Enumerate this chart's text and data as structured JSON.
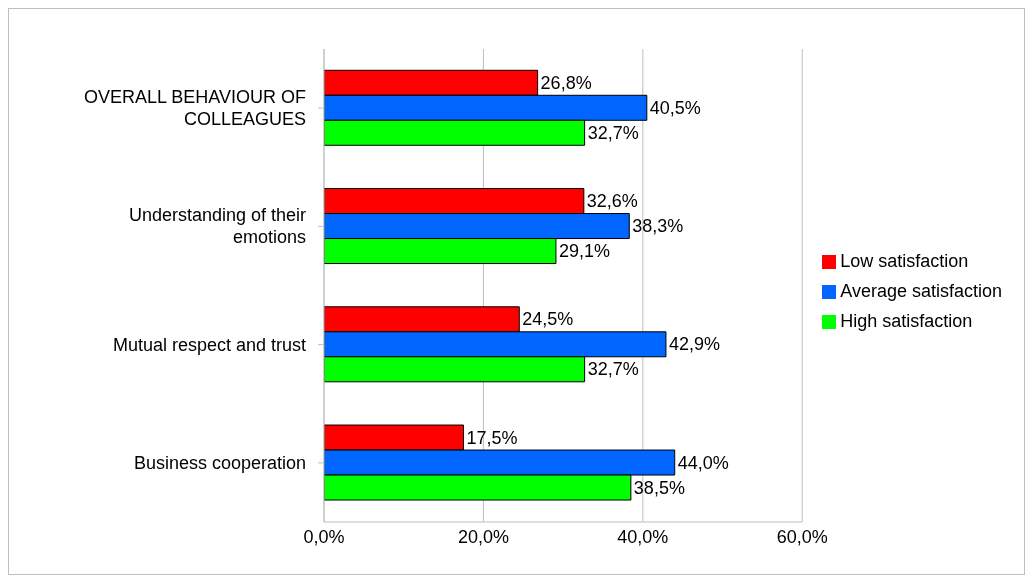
{
  "chart_data": {
    "type": "bar",
    "orientation": "horizontal",
    "categories": [
      "OVERALL BEHAVIOUR OF COLLEAGUES",
      "Understanding of their emotions",
      "Mutual respect and trust",
      "Business cooperation"
    ],
    "series": [
      {
        "name": "Low satisfaction",
        "color": "#ff0000",
        "values": [
          26.8,
          32.6,
          24.5,
          17.5
        ],
        "value_labels": [
          "26,8%",
          "32,6%",
          "24,5%",
          "17,5%"
        ]
      },
      {
        "name": "Average satisfaction",
        "color": "#0066ff",
        "values": [
          40.5,
          38.3,
          42.9,
          44.0
        ],
        "value_labels": [
          "40,5%",
          "38,3%",
          "42,9%",
          "44,0%"
        ]
      },
      {
        "name": "High satisfaction",
        "color": "#00ff00",
        "values": [
          32.7,
          29.1,
          32.7,
          38.5
        ],
        "value_labels": [
          "32,7%",
          "29,1%",
          "32,7%",
          "38,5%"
        ]
      }
    ],
    "xlim": [
      0,
      60
    ],
    "xticks": [
      {
        "value": 0,
        "label": "0,0%"
      },
      {
        "value": 20,
        "label": "20,0%"
      },
      {
        "value": 40,
        "label": "40,0%"
      },
      {
        "value": 60,
        "label": "60,0%"
      }
    ],
    "grid": "x",
    "legend": "right"
  }
}
